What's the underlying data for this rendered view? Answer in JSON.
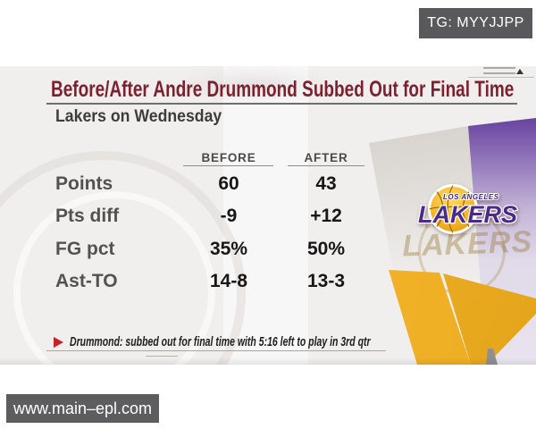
{
  "top_badge": {
    "label": "TG: MYYJJPP",
    "bg": "#59595b"
  },
  "watermark_badge": {
    "label": "www.main–epl.com",
    "bg": "#5d5d5f"
  },
  "card": {
    "title": "Before/After Andre Drummond Subbed Out for Final Time",
    "title_color": "#7c2130",
    "subtitle": "Lakers on Wednesday",
    "table": {
      "columns": [
        "BEFORE",
        "AFTER"
      ],
      "rows": [
        {
          "label": "Points",
          "before": "60",
          "after": "43"
        },
        {
          "label": "Pts diff",
          "before": "-9",
          "after": "+12"
        },
        {
          "label": "FG pct",
          "before": "35%",
          "after": "50%"
        },
        {
          "label": "Ast-TO",
          "before": "14-8",
          "after": "13-3"
        }
      ]
    },
    "footnote": {
      "marker": "right-triangle",
      "marker_color": "#c4232a",
      "text": "Drummond: subbed out for final time with 5:16 left to play in 3rd qtr"
    },
    "logo": {
      "team": "Los Angeles Lakers",
      "top_text": "LOS ANGELES",
      "main_text": "LAKERS",
      "ghost_top_text": "LOS ANGELES",
      "ghost_main_text": "LAKERS",
      "ball_color": "#fdb927",
      "wordmark_color": "#4b2a8e"
    },
    "accent_colors": {
      "purple_band": "#4f2d8c",
      "gold_band": "#f2b32b"
    }
  },
  "chart_data": {
    "type": "table",
    "title": "Before/After Andre Drummond Subbed Out for Final Time",
    "subtitle": "Lakers on Wednesday",
    "categories": [
      "Points",
      "Pts diff",
      "FG pct",
      "Ast-TO"
    ],
    "series": [
      {
        "name": "BEFORE",
        "values": [
          "60",
          "-9",
          "35%",
          "14-8"
        ]
      },
      {
        "name": "AFTER",
        "values": [
          "43",
          "+12",
          "50%",
          "13-3"
        ]
      }
    ],
    "annotation": "Drummond: subbed out for final time with 5:16 left to play in 3rd qtr"
  }
}
